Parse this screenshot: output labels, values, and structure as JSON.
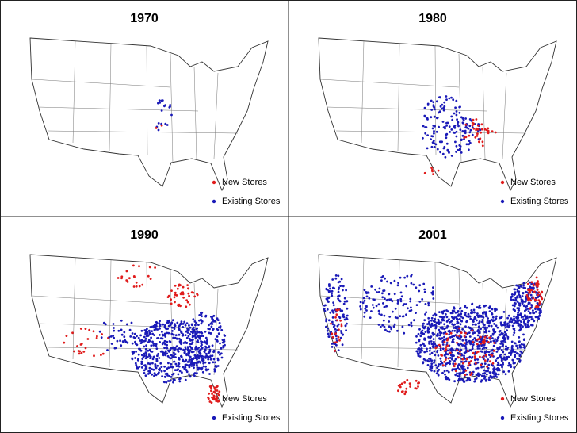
{
  "panels": [
    {
      "title": "1970",
      "legend": [
        {
          "label": "New Stores",
          "color": "#e01b1b"
        },
        {
          "label": "Existing Stores",
          "color": "#1a1ab8"
        }
      ]
    },
    {
      "title": "1980",
      "legend": [
        {
          "label": "New Stores",
          "color": "#e01b1b"
        },
        {
          "label": "Existing Stores",
          "color": "#1a1ab8"
        }
      ]
    },
    {
      "title": "1990",
      "legend": [
        {
          "label": "New Stores",
          "color": "#e01b1b"
        },
        {
          "label": "Existing Stores",
          "color": "#1a1ab8"
        }
      ]
    },
    {
      "title": "2001",
      "legend": [
        {
          "label": "New Stores",
          "color": "#e01b1b"
        },
        {
          "label": "Existing Stores",
          "color": "#1a1ab8"
        }
      ]
    }
  ]
}
